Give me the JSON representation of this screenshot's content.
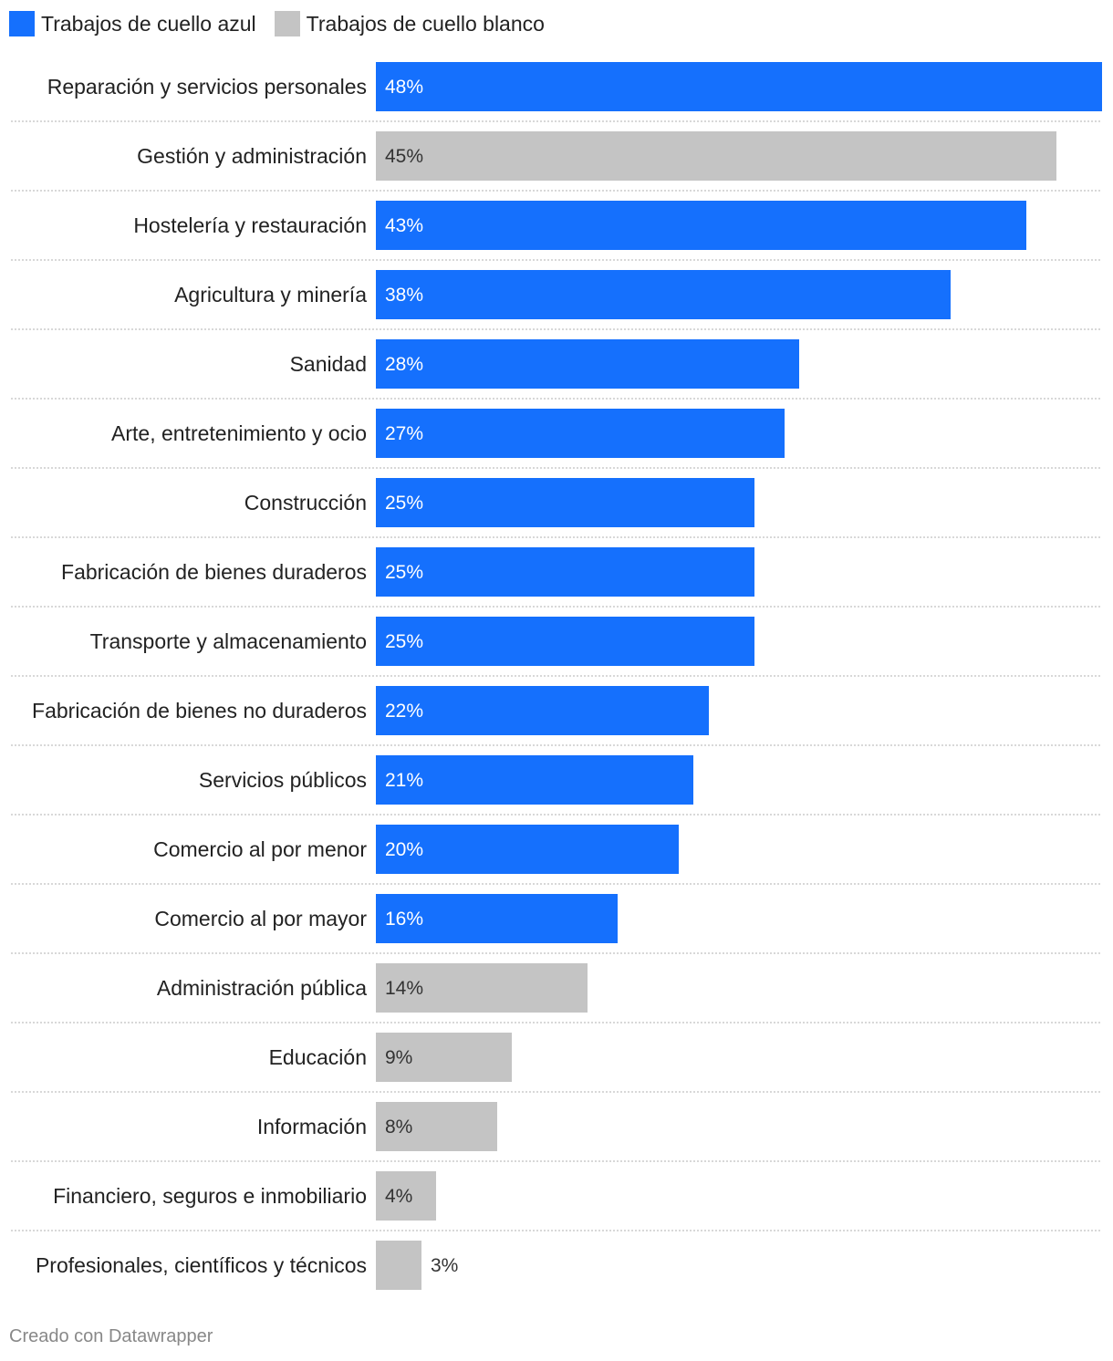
{
  "chart_data": {
    "type": "bar",
    "orientation": "horizontal",
    "legend": [
      {
        "name": "Trabajos de cuello azul",
        "color": "#1570fd"
      },
      {
        "name": "Trabajos de cuello blanco",
        "color": "#c4c4c4"
      }
    ],
    "categories": [
      "Reparación y servicios personales",
      "Gestión y administración",
      "Hostelería y restauración",
      "Agricultura y minería",
      "Sanidad",
      "Arte, entretenimiento y ocio",
      "Construcción",
      "Fabricación de bienes duraderos",
      "Transporte y almacenamiento",
      "Fabricación de bienes no duraderos",
      "Servicios públicos",
      "Comercio al por menor",
      "Comercio al por mayor",
      "Administración pública",
      "Educación",
      "Información",
      "Financiero, seguros e inmobiliario",
      "Profesionales, científicos y técnicos"
    ],
    "values": [
      48,
      45,
      43,
      38,
      28,
      27,
      25,
      25,
      25,
      22,
      21,
      20,
      16,
      14,
      9,
      8,
      4,
      3
    ],
    "labels": [
      "48%",
      "45%",
      "43%",
      "38%",
      "28%",
      "27%",
      "25%",
      "25%",
      "25%",
      "22%",
      "21%",
      "20%",
      "16%",
      "14%",
      "9%",
      "8%",
      "4%",
      "3%"
    ],
    "group": [
      "azul",
      "blanco",
      "azul",
      "azul",
      "azul",
      "azul",
      "azul",
      "azul",
      "azul",
      "azul",
      "azul",
      "azul",
      "azul",
      "blanco",
      "blanco",
      "blanco",
      "blanco",
      "blanco"
    ],
    "xlim": [
      0,
      48
    ],
    "unit": "%"
  },
  "colors": {
    "azul": "#1570fd",
    "blanco": "#c4c4c4",
    "grid": "#cccccc"
  },
  "footer": "Creado con Datawrapper"
}
